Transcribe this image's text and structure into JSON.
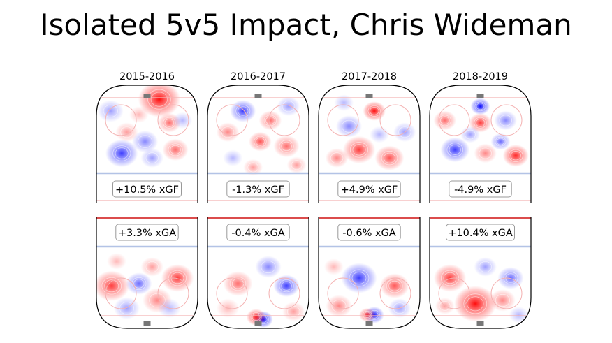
{
  "chart_data": {
    "type": "heatmap",
    "title": "Isolated 5v5 Impact, Chris Wideman",
    "colors": {
      "positive": "#ff0000",
      "negative": "#0000ff",
      "rink_line": "#000000",
      "blue_line": "#b3c3e6",
      "red_line": "#f4b3b3",
      "net": "#777777"
    },
    "seasons": [
      {
        "label": "2015-2016",
        "xgf": "+10.5% xGF",
        "xga": "+3.3% xGA",
        "offense_blobs": [
          {
            "x": 0.62,
            "y": 0.12,
            "v": 1.0,
            "s": 0.13
          },
          {
            "x": 0.72,
            "y": 0.32,
            "v": 0.6,
            "s": 0.07
          },
          {
            "x": 0.14,
            "y": 0.22,
            "v": -0.4,
            "s": 0.08
          },
          {
            "x": 0.25,
            "y": 0.58,
            "v": -0.8,
            "s": 0.1
          },
          {
            "x": 0.48,
            "y": 0.48,
            "v": -0.5,
            "s": 0.08
          },
          {
            "x": 0.3,
            "y": 0.4,
            "v": 0.4,
            "s": 0.07
          },
          {
            "x": 0.78,
            "y": 0.55,
            "v": 0.6,
            "s": 0.08
          },
          {
            "x": 0.55,
            "y": 0.62,
            "v": -0.4,
            "s": 0.07
          },
          {
            "x": 0.42,
            "y": 0.25,
            "v": 0.3,
            "s": 0.06
          },
          {
            "x": 0.85,
            "y": 0.3,
            "v": -0.3,
            "s": 0.06
          }
        ],
        "defense_blobs": [
          {
            "x": 0.15,
            "y": 0.62,
            "v": 0.8,
            "s": 0.11
          },
          {
            "x": 0.8,
            "y": 0.55,
            "v": 0.8,
            "s": 0.1
          },
          {
            "x": 0.42,
            "y": 0.6,
            "v": -0.6,
            "s": 0.08
          },
          {
            "x": 0.6,
            "y": 0.75,
            "v": 0.5,
            "s": 0.09
          },
          {
            "x": 0.3,
            "y": 0.82,
            "v": -0.4,
            "s": 0.08
          },
          {
            "x": 0.72,
            "y": 0.82,
            "v": -0.3,
            "s": 0.07
          },
          {
            "x": 0.2,
            "y": 0.4,
            "v": 0.3,
            "s": 0.06
          },
          {
            "x": 0.55,
            "y": 0.45,
            "v": 0.4,
            "s": 0.07
          }
        ]
      },
      {
        "label": "2016-2017",
        "xgf": "-1.3% xGF",
        "xga": "-0.4% xGA",
        "offense_blobs": [
          {
            "x": 0.35,
            "y": 0.22,
            "v": -0.8,
            "s": 0.08
          },
          {
            "x": 0.62,
            "y": 0.3,
            "v": 0.6,
            "s": 0.07
          },
          {
            "x": 0.8,
            "y": 0.18,
            "v": -0.4,
            "s": 0.07
          },
          {
            "x": 0.2,
            "y": 0.4,
            "v": 0.5,
            "s": 0.07
          },
          {
            "x": 0.52,
            "y": 0.48,
            "v": 0.7,
            "s": 0.07
          },
          {
            "x": 0.78,
            "y": 0.52,
            "v": 0.6,
            "s": 0.08
          },
          {
            "x": 0.45,
            "y": 0.7,
            "v": 0.4,
            "s": 0.06
          },
          {
            "x": 0.88,
            "y": 0.68,
            "v": 0.4,
            "s": 0.06
          },
          {
            "x": 0.25,
            "y": 0.62,
            "v": -0.3,
            "s": 0.06
          }
        ],
        "defense_blobs": [
          {
            "x": 0.55,
            "y": 0.92,
            "v": -1.0,
            "s": 0.06
          },
          {
            "x": 0.48,
            "y": 0.9,
            "v": 0.9,
            "s": 0.06
          },
          {
            "x": 0.78,
            "y": 0.62,
            "v": -0.8,
            "s": 0.08
          },
          {
            "x": 0.3,
            "y": 0.6,
            "v": 0.6,
            "s": 0.09
          },
          {
            "x": 0.6,
            "y": 0.45,
            "v": -0.5,
            "s": 0.08
          },
          {
            "x": 0.2,
            "y": 0.82,
            "v": 0.3,
            "s": 0.07
          },
          {
            "x": 0.85,
            "y": 0.85,
            "v": 0.4,
            "s": 0.07
          }
        ]
      },
      {
        "label": "2017-2018",
        "xgf": "+4.9% xGF",
        "xga": "-0.6% xGA",
        "offense_blobs": [
          {
            "x": 0.55,
            "y": 0.22,
            "v": 1.0,
            "s": 0.07
          },
          {
            "x": 0.4,
            "y": 0.55,
            "v": 0.8,
            "s": 0.1
          },
          {
            "x": 0.7,
            "y": 0.62,
            "v": 0.7,
            "s": 0.09
          },
          {
            "x": 0.3,
            "y": 0.35,
            "v": -0.5,
            "s": 0.08
          },
          {
            "x": 0.85,
            "y": 0.4,
            "v": -0.4,
            "s": 0.07
          },
          {
            "x": 0.18,
            "y": 0.62,
            "v": 0.5,
            "s": 0.07
          },
          {
            "x": 0.6,
            "y": 0.42,
            "v": -0.3,
            "s": 0.06
          },
          {
            "x": 0.25,
            "y": 0.15,
            "v": -0.3,
            "s": 0.06
          }
        ],
        "defense_blobs": [
          {
            "x": 0.4,
            "y": 0.55,
            "v": -0.8,
            "s": 0.11
          },
          {
            "x": 0.55,
            "y": 0.88,
            "v": -0.9,
            "s": 0.06
          },
          {
            "x": 0.48,
            "y": 0.88,
            "v": 0.8,
            "s": 0.05
          },
          {
            "x": 0.75,
            "y": 0.62,
            "v": 0.7,
            "s": 0.09
          },
          {
            "x": 0.2,
            "y": 0.8,
            "v": 0.5,
            "s": 0.08
          },
          {
            "x": 0.8,
            "y": 0.82,
            "v": -0.4,
            "s": 0.07
          },
          {
            "x": 0.15,
            "y": 0.45,
            "v": 0.3,
            "s": 0.06
          }
        ]
      },
      {
        "label": "2018-2019",
        "xgf": "-4.9% xGF",
        "xga": "+10.4% xGA",
        "offense_blobs": [
          {
            "x": 0.5,
            "y": 0.18,
            "v": -1.0,
            "s": 0.06
          },
          {
            "x": 0.5,
            "y": 0.32,
            "v": 0.8,
            "s": 0.07
          },
          {
            "x": 0.15,
            "y": 0.3,
            "v": 0.6,
            "s": 0.07
          },
          {
            "x": 0.25,
            "y": 0.55,
            "v": -0.8,
            "s": 0.09
          },
          {
            "x": 0.85,
            "y": 0.6,
            "v": 0.9,
            "s": 0.08
          },
          {
            "x": 0.75,
            "y": 0.3,
            "v": -0.5,
            "s": 0.07
          },
          {
            "x": 0.55,
            "y": 0.58,
            "v": 0.5,
            "s": 0.07
          },
          {
            "x": 0.4,
            "y": 0.42,
            "v": -0.4,
            "s": 0.06
          },
          {
            "x": 0.7,
            "y": 0.48,
            "v": -0.6,
            "s": 0.06
          }
        ],
        "defense_blobs": [
          {
            "x": 0.45,
            "y": 0.78,
            "v": 1.0,
            "s": 0.13
          },
          {
            "x": 0.2,
            "y": 0.55,
            "v": 0.8,
            "s": 0.1
          },
          {
            "x": 0.8,
            "y": 0.55,
            "v": -0.6,
            "s": 0.08
          },
          {
            "x": 0.72,
            "y": 0.75,
            "v": 0.5,
            "s": 0.08
          },
          {
            "x": 0.55,
            "y": 0.45,
            "v": -0.4,
            "s": 0.07
          },
          {
            "x": 0.15,
            "y": 0.8,
            "v": 0.4,
            "s": 0.06
          },
          {
            "x": 0.88,
            "y": 0.88,
            "v": -0.3,
            "s": 0.06
          }
        ]
      }
    ]
  }
}
